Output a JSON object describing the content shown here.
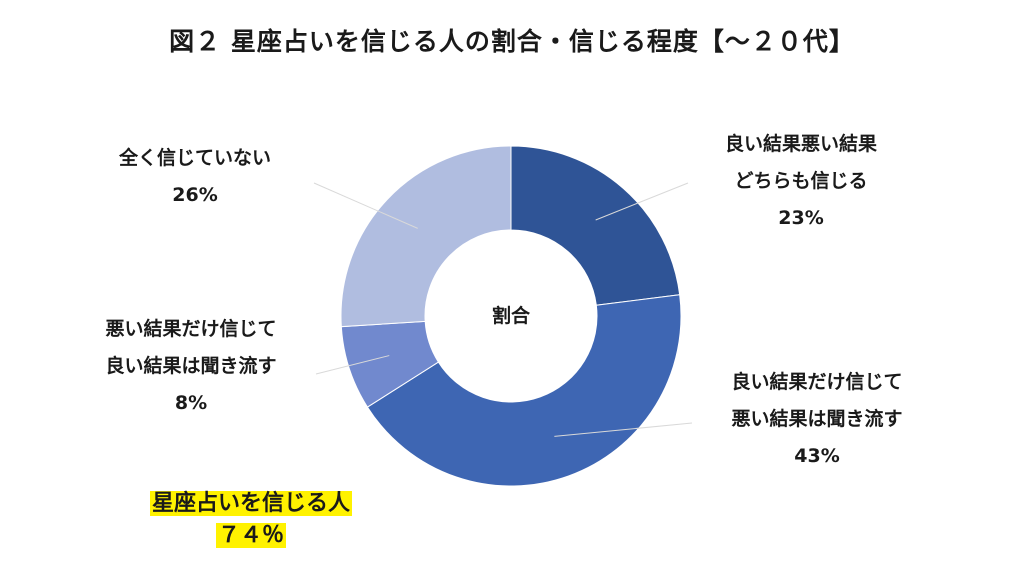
{
  "title": "図２ 星座占いを信じる人の割合・信じる程度【～２０代】",
  "chart_data": {
    "type": "donut",
    "center_label": "割合",
    "slices": [
      {
        "label_lines": [
          "良い結果悪い結果",
          "どちらも信じる"
        ],
        "value": 23,
        "pct_text": "23%",
        "color": "#2f5496"
      },
      {
        "label_lines": [
          "良い結果だけ信じて",
          "悪い結果は聞き流す"
        ],
        "value": 43,
        "pct_text": "43%",
        "color": "#3e66b3"
      },
      {
        "label_lines": [
          "悪い結果だけ信じて",
          "良い結果は聞き流す"
        ],
        "value": 8,
        "pct_text": "8%",
        "color": "#7189ce"
      },
      {
        "label_lines": [
          "全く信じていない"
        ],
        "value": 26,
        "pct_text": "26%",
        "color": "#b0bde0"
      }
    ]
  },
  "highlight": {
    "line1": "星座占いを信じる人",
    "line2": "７４％"
  }
}
